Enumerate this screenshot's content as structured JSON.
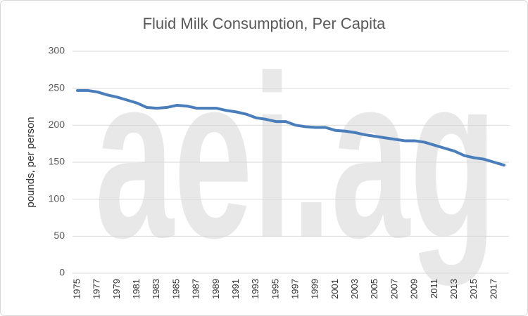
{
  "chart_data": {
    "type": "line",
    "title": "Fluid Milk Consumption,  Per Capita",
    "y_label": "pounds, per person",
    "watermark": "aei.ag",
    "categories": [
      "1975",
      null,
      "1977",
      null,
      "1979",
      null,
      "1981",
      null,
      "1983",
      null,
      "1985",
      null,
      "1987",
      null,
      "1989",
      null,
      "1991",
      null,
      "1993",
      null,
      "1995",
      null,
      "1997",
      null,
      "1999",
      null,
      "2001",
      null,
      "2003",
      null,
      "2005",
      null,
      "2007",
      null,
      "2009",
      null,
      "2011",
      null,
      "2013",
      null,
      "2015",
      null,
      "2017",
      null
    ],
    "series": [
      {
        "name": "Fluid milk",
        "color": "#4a7ebb",
        "values": [
          247,
          247,
          245,
          241,
          238,
          234,
          230,
          224,
          223,
          224,
          227,
          226,
          223,
          223,
          223,
          220,
          218,
          215,
          210,
          208,
          205,
          205,
          200,
          198,
          197,
          197,
          193,
          192,
          190,
          187,
          185,
          183,
          181,
          179,
          179,
          177,
          173,
          169,
          165,
          159,
          156,
          154,
          150,
          146
        ]
      }
    ],
    "ylim": [
      0,
      300
    ],
    "yticks": [
      0,
      50,
      100,
      150,
      200,
      250,
      300
    ],
    "grid": true
  }
}
